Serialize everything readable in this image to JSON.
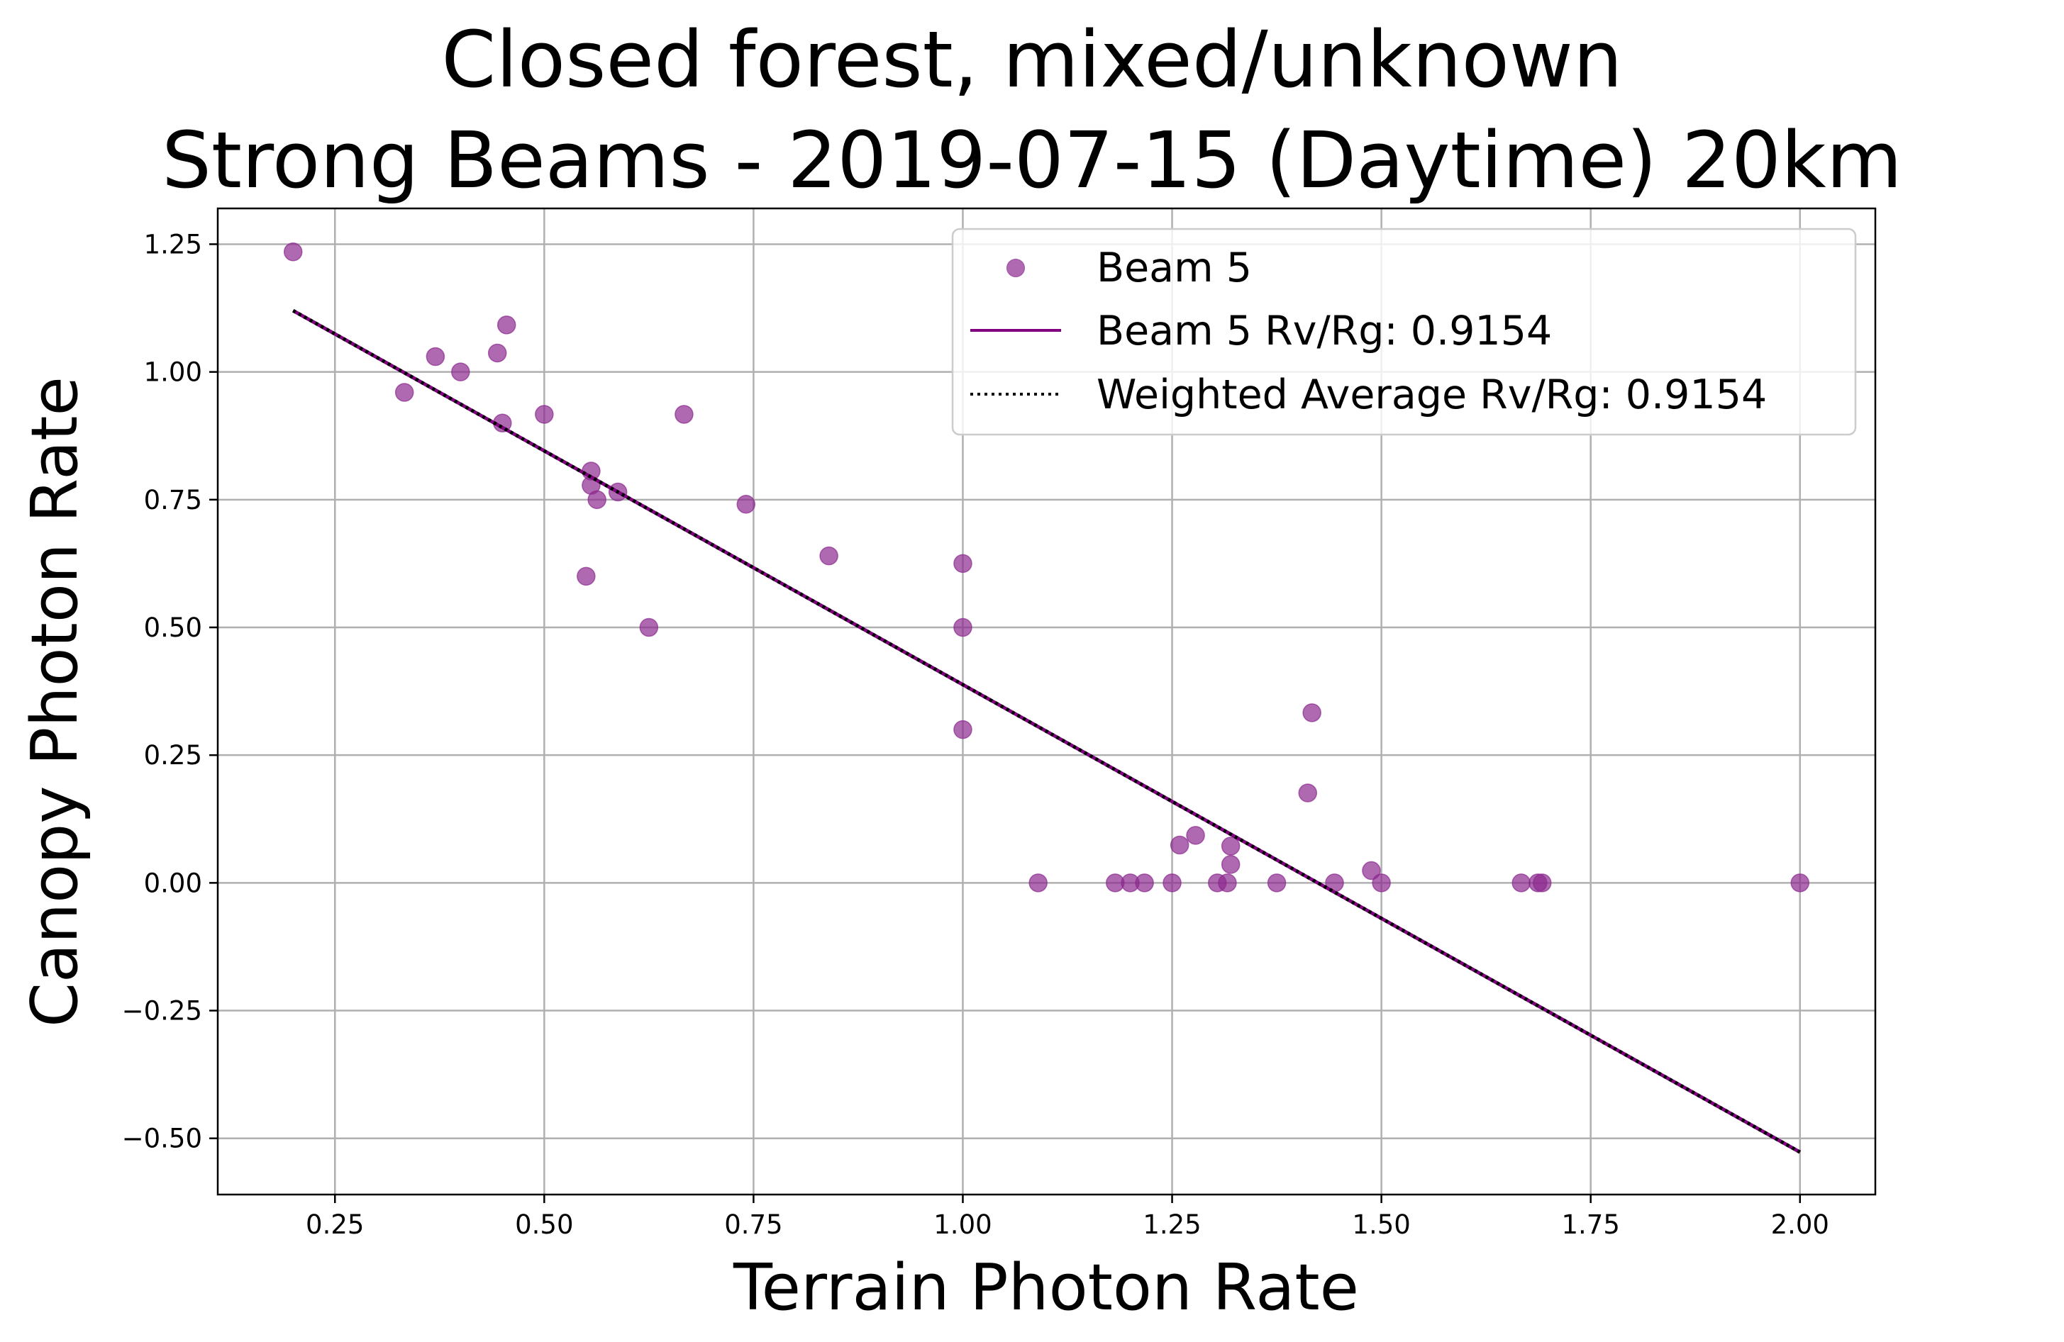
{
  "chart_data": {
    "type": "scatter",
    "title_lines": [
      "Closed forest, mixed/unknown",
      "Strong Beams - 2019-07-15 (Daytime) 20km"
    ],
    "xlabel": "Terrain Photon Rate",
    "ylabel": "Canopy Photon Rate",
    "xlim": [
      0.11,
      2.09
    ],
    "ylim": [
      -0.61,
      1.32
    ],
    "xticks": [
      0.25,
      0.5,
      0.75,
      1.0,
      1.25,
      1.5,
      1.75,
      2.0
    ],
    "xtick_labels": [
      "0.25",
      "0.50",
      "0.75",
      "1.00",
      "1.25",
      "1.50",
      "1.75",
      "2.00"
    ],
    "yticks": [
      1.25,
      1.0,
      0.75,
      0.5,
      0.25,
      0.0,
      -0.25,
      -0.5
    ],
    "ytick_labels": [
      "1.25",
      "1.00",
      "0.75",
      "0.50",
      "0.25",
      "0.00",
      "−0.25",
      "−0.50"
    ],
    "grid": true,
    "legend_position": "upper right",
    "series": [
      {
        "name": "Beam 5",
        "kind": "scatter",
        "color": "#8B2A8F",
        "opacity": 0.7,
        "points": [
          [
            0.2,
            1.235
          ],
          [
            0.333,
            0.96
          ],
          [
            0.37,
            1.03
          ],
          [
            0.4,
            1.0
          ],
          [
            0.444,
            1.037
          ],
          [
            0.45,
            0.9
          ],
          [
            0.455,
            1.092
          ],
          [
            0.5,
            0.917
          ],
          [
            0.55,
            0.6
          ],
          [
            0.556,
            0.806
          ],
          [
            0.556,
            0.778
          ],
          [
            0.563,
            0.75
          ],
          [
            0.588,
            0.765
          ],
          [
            0.625,
            0.5
          ],
          [
            0.667,
            0.917
          ],
          [
            0.741,
            0.741
          ],
          [
            0.84,
            0.64
          ],
          [
            1.0,
            0.625
          ],
          [
            1.0,
            0.5
          ],
          [
            1.0,
            0.3
          ],
          [
            1.09,
            0.0
          ],
          [
            1.182,
            0.0
          ],
          [
            1.2,
            0.0
          ],
          [
            1.217,
            0.0
          ],
          [
            1.25,
            0.0
          ],
          [
            1.259,
            0.074
          ],
          [
            1.278,
            0.093
          ],
          [
            1.304,
            0.0
          ],
          [
            1.316,
            0.0
          ],
          [
            1.32,
            0.072
          ],
          [
            1.32,
            0.036
          ],
          [
            1.375,
            0.0
          ],
          [
            1.412,
            0.176
          ],
          [
            1.417,
            0.333
          ],
          [
            1.444,
            0.0
          ],
          [
            1.488,
            0.024
          ],
          [
            1.5,
            0.0
          ],
          [
            1.667,
            0.0
          ],
          [
            1.687,
            0.0
          ],
          [
            1.692,
            0.0
          ],
          [
            2.0,
            0.0
          ]
        ]
      },
      {
        "name": "Beam 5 Rv/Rg: 0.9154",
        "kind": "line",
        "color": "#800080",
        "points": [
          [
            0.2,
            1.12
          ],
          [
            2.0,
            -0.527
          ]
        ]
      },
      {
        "name": "Weighted Average Rv/Rg: 0.9154",
        "kind": "dotted-line",
        "color": "#000000",
        "points": [
          [
            0.2,
            1.12
          ],
          [
            2.0,
            -0.527
          ]
        ]
      }
    ]
  }
}
